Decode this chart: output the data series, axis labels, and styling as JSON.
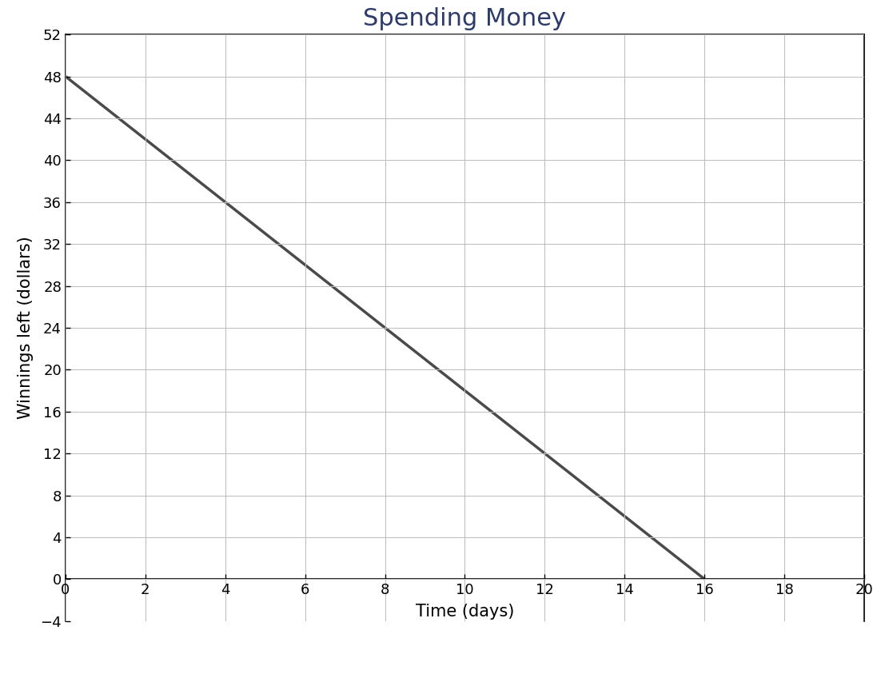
{
  "title": "Spending Money",
  "xlabel": "Time (days)",
  "ylabel": "Winnings left (dollars)",
  "title_color": "#2D3B6B",
  "line_x": [
    0,
    16
  ],
  "line_y": [
    48,
    0
  ],
  "line_color": "#4A4A4A",
  "line_width": 2.5,
  "xlim": [
    0,
    20
  ],
  "ylim": [
    -4,
    52
  ],
  "xticks": [
    0,
    2,
    4,
    6,
    8,
    10,
    12,
    14,
    16,
    18,
    20
  ],
  "yticks": [
    -4,
    0,
    4,
    8,
    12,
    16,
    20,
    24,
    28,
    32,
    36,
    40,
    44,
    48,
    52
  ],
  "grid_color": "#BBBBBB",
  "grid_linewidth": 0.7,
  "title_fontsize": 22,
  "label_fontsize": 15,
  "tick_fontsize": 13,
  "background_color": "#FFFFFF"
}
